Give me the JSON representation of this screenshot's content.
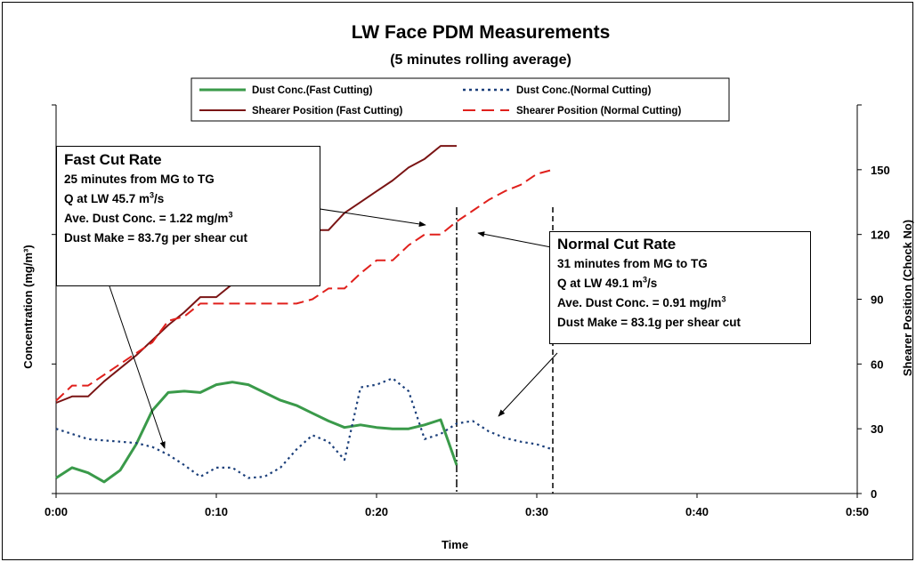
{
  "chart_data": {
    "type": "line",
    "title": "LW Face PDM Measurements",
    "subtitle": "(5 minutes rolling average)",
    "xlabel": "Time",
    "ylabel_left": "Concentration (mg/m³)",
    "ylabel_right": "Shearer Position (Chock No)",
    "x_ticks": [
      "0:00",
      "0:10",
      "0:20",
      "0:30",
      "0:40",
      "0:50"
    ],
    "x_range_minutes": [
      0,
      50
    ],
    "y_left_range": [
      0,
      3
    ],
    "y_right_range": [
      0,
      180
    ],
    "y_right_ticks": [
      "0",
      "30",
      "60",
      "90",
      "120",
      "150"
    ],
    "grid": false,
    "legend_position": "top",
    "series": [
      {
        "name": "Dust Conc.(Fast Cutting)",
        "axis": "left",
        "color": "#3a9a4a",
        "style": "solid-thick",
        "x": [
          0,
          1,
          2,
          3,
          4,
          5,
          6,
          7,
          8,
          9,
          10,
          11,
          12,
          13,
          14,
          15,
          16,
          17,
          18,
          19,
          20,
          21,
          22,
          23,
          24,
          25
        ],
        "values": [
          0.12,
          0.2,
          0.16,
          0.09,
          0.18,
          0.38,
          0.64,
          0.78,
          0.79,
          0.78,
          0.84,
          0.86,
          0.84,
          0.78,
          0.72,
          0.68,
          0.62,
          0.56,
          0.51,
          0.53,
          0.51,
          0.5,
          0.5,
          0.53,
          0.57,
          0.22
        ]
      },
      {
        "name": "Dust Conc.(Normal Cutting)",
        "axis": "left",
        "color": "#1b3f7a",
        "style": "dotted",
        "x": [
          0,
          1,
          2,
          3,
          4,
          5,
          6,
          7,
          8,
          9,
          10,
          11,
          12,
          13,
          14,
          15,
          16,
          17,
          18,
          19,
          20,
          21,
          22,
          23,
          24,
          25,
          26,
          27,
          28,
          29,
          30,
          31
        ],
        "values": [
          0.5,
          0.46,
          0.42,
          0.41,
          0.4,
          0.39,
          0.36,
          0.3,
          0.22,
          0.13,
          0.2,
          0.2,
          0.12,
          0.13,
          0.2,
          0.34,
          0.45,
          0.4,
          0.26,
          0.82,
          0.84,
          0.89,
          0.79,
          0.42,
          0.46,
          0.54,
          0.56,
          0.48,
          0.43,
          0.4,
          0.38,
          0.34
        ]
      },
      {
        "name": "Shearer Position (Fast Cutting)",
        "axis": "right",
        "color": "#7a1414",
        "style": "solid",
        "x": [
          0,
          1,
          2,
          3,
          4,
          5,
          6,
          7,
          8,
          9,
          10,
          11,
          12,
          13,
          14,
          15,
          16,
          17,
          18,
          19,
          20,
          21,
          22,
          23,
          24,
          25
        ],
        "values": [
          42,
          45,
          45,
          52,
          58,
          64,
          71,
          78,
          84,
          91,
          91,
          97,
          102,
          108,
          114,
          118,
          122,
          122,
          130,
          135,
          140,
          145,
          151,
          155,
          161,
          161
        ]
      },
      {
        "name": "Shearer Position (Normal Cutting)",
        "axis": "right",
        "color": "#e0201c",
        "style": "dashed",
        "x": [
          0,
          1,
          2,
          3,
          4,
          5,
          6,
          7,
          8,
          9,
          10,
          11,
          12,
          13,
          14,
          15,
          16,
          17,
          18,
          19,
          20,
          21,
          22,
          23,
          24,
          25,
          26,
          27,
          28,
          29,
          30,
          31
        ],
        "values": [
          43,
          50,
          50,
          55,
          60,
          65,
          70,
          80,
          82,
          88,
          88,
          88,
          88,
          88,
          88,
          88,
          90,
          95,
          95,
          102,
          108,
          108,
          115,
          120,
          120,
          126,
          131,
          136,
          140,
          143,
          148,
          150
        ]
      }
    ],
    "vertical_markers": [
      {
        "x": 25,
        "style": "dash-dot"
      },
      {
        "x": 31,
        "style": "dashed"
      }
    ]
  },
  "annotations": {
    "fast": {
      "title": "Fast Cut Rate",
      "line1": "25 minutes from MG to TG",
      "line2_prefix": "Q at LW 45.7 m",
      "line2_sup": "3",
      "line2_suffix": "/s",
      "line3_prefix": "Ave. Dust Conc. = 1.22 mg/m",
      "line3_sup": "3",
      "line4": "Dust Make = 83.7g per shear cut"
    },
    "normal": {
      "title": "Normal Cut Rate",
      "line1": "31 minutes from MG to TG",
      "line2_prefix": "Q at LW 49.1 m",
      "line2_sup": "3",
      "line2_suffix": "/s",
      "line3_prefix": "Ave. Dust Conc. = 0.91 mg/m",
      "line3_sup": "3",
      "line4": "Dust Make = 83.1g per shear cut"
    }
  }
}
